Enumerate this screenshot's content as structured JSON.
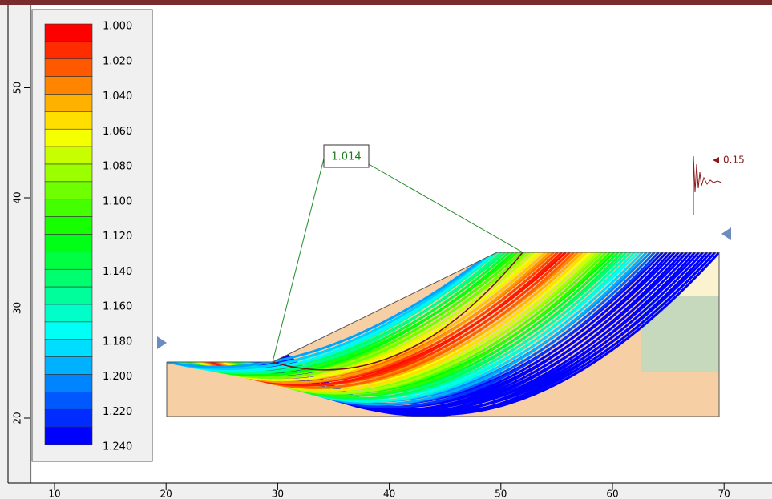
{
  "legend": {
    "labels": [
      "1.000",
      "1.020",
      "1.040",
      "1.060",
      "1.080",
      "1.100",
      "1.120",
      "1.140",
      "1.160",
      "1.180",
      "1.200",
      "1.220",
      "1.240"
    ]
  },
  "min_factor_of_safety": "1.014",
  "seismic_coefficient": "0.15",
  "x_axis": {
    "ticks": [
      10,
      20,
      30,
      40,
      50,
      60,
      70
    ]
  },
  "y_axis": {
    "ticks": [
      20,
      30,
      40,
      50
    ]
  }
}
